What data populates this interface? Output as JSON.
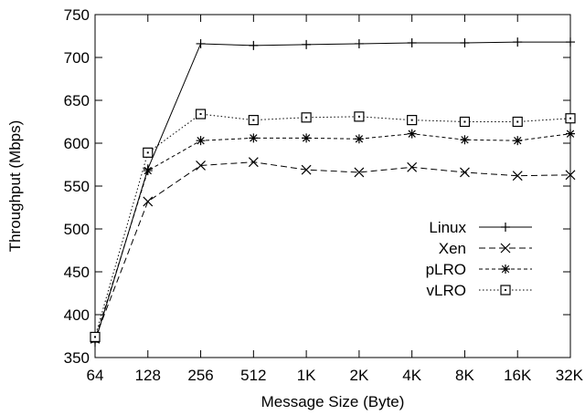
{
  "chart_data": {
    "type": "line",
    "title": "",
    "xlabel": "Message Size (Byte)",
    "ylabel": "Throughput (Mbps)",
    "categories": [
      "64",
      "128",
      "256",
      "512",
      "1K",
      "2K",
      "4K",
      "8K",
      "16K",
      "32K"
    ],
    "ylim": [
      350,
      750
    ],
    "yticks": [
      350,
      400,
      450,
      500,
      550,
      600,
      650,
      700,
      750
    ],
    "grid": false,
    "legend_position": "right",
    "series": [
      {
        "name": "Linux",
        "marker": "plus",
        "dash": "solid",
        "color": "#000000",
        "values": [
          368,
          570,
          716,
          714,
          715,
          716,
          717,
          717,
          718,
          718
        ]
      },
      {
        "name": "Xen",
        "marker": "x",
        "dash": "dashed",
        "color": "#000000",
        "values": [
          372,
          532,
          574,
          578,
          569,
          566,
          572,
          566,
          562,
          563
        ]
      },
      {
        "name": "pLRO",
        "marker": "asterisk",
        "dash": "shortdash",
        "color": "#000000",
        "values": [
          371,
          568,
          603,
          606,
          606,
          605,
          611,
          604,
          603,
          611
        ]
      },
      {
        "name": "vLRO",
        "marker": "square",
        "dash": "dotted",
        "color": "#000000",
        "values": [
          374,
          589,
          634,
          627,
          630,
          631,
          627,
          625,
          625,
          629
        ]
      }
    ]
  }
}
